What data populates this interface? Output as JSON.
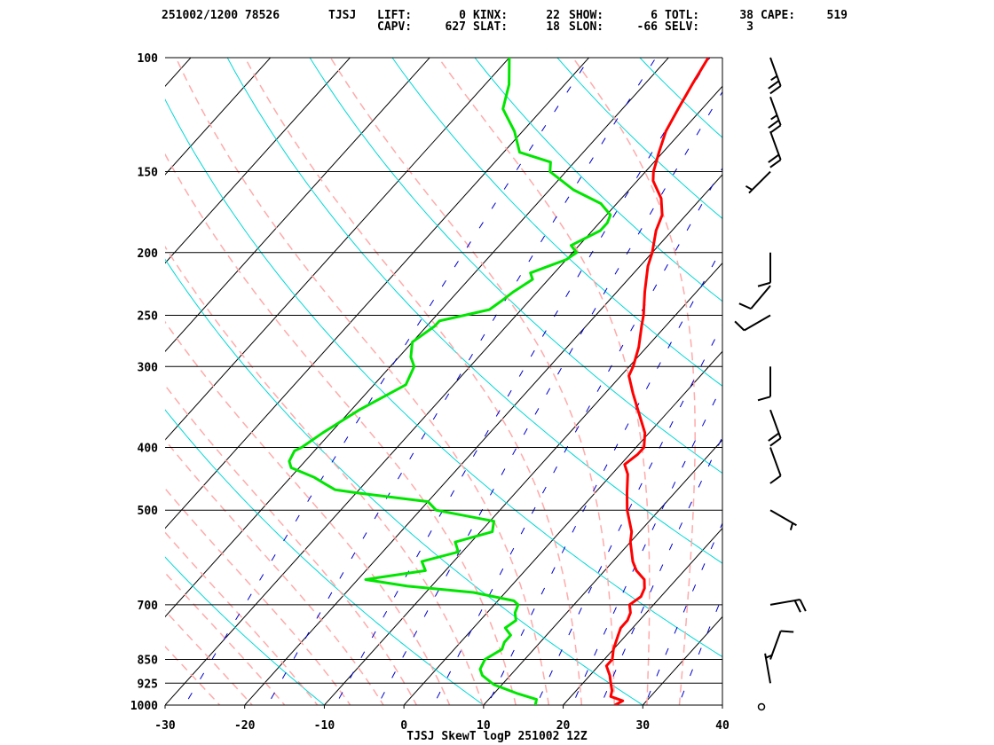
{
  "header": {
    "line1": [
      {
        "key": "id",
        "text": "251002/1200 78526"
      },
      {
        "key": "stn",
        "text": "TJSJ"
      },
      {
        "key": "lift",
        "label": "LIFT:",
        "value": "0"
      },
      {
        "key": "kinx",
        "label": "KINX:",
        "value": "22"
      },
      {
        "key": "show",
        "label": "SHOW:",
        "value": "6"
      },
      {
        "key": "totl",
        "label": "TOTL:",
        "value": "38"
      },
      {
        "key": "cape",
        "label": "CAPE:",
        "value": "519"
      }
    ],
    "line2": [
      {
        "key": "capv",
        "label": "CAPV:",
        "value": "627"
      },
      {
        "key": "slat",
        "label": "SLAT:",
        "value": "18"
      },
      {
        "key": "slon",
        "label": "SLON:",
        "value": "-66"
      },
      {
        "key": "selv",
        "label": "SELV:",
        "value": "3"
      }
    ]
  },
  "colors": {
    "temperature": "#ff0000",
    "dewpoint": "#00e600",
    "isotherm": "#000000",
    "dry_adiabat": "#00d8d8",
    "moist_adiabat": "#ffaaaa",
    "mixing_ratio": "#0000cc",
    "isobar": "#000000",
    "wind_barb": "#000000"
  },
  "chart_data": {
    "type": "line",
    "title": "TJSJ SkewT logP 251002 12Z",
    "x_axis": {
      "ticks": [
        -30,
        -20,
        -10,
        0,
        10,
        20,
        30,
        40
      ],
      "range": [
        -30,
        40
      ]
    },
    "y_axis": {
      "scale": "log",
      "ticks": [
        100,
        150,
        200,
        250,
        300,
        400,
        500,
        700,
        850,
        925,
        1000
      ],
      "range": [
        1000,
        100
      ]
    },
    "series": [
      {
        "key": "temperature",
        "points": [
          [
            1000,
            26.5
          ],
          [
            985,
            27
          ],
          [
            970,
            25
          ],
          [
            950,
            24.5
          ],
          [
            925,
            23.5
          ],
          [
            900,
            22.5
          ],
          [
            870,
            21
          ],
          [
            850,
            21
          ],
          [
            820,
            20
          ],
          [
            800,
            19.5
          ],
          [
            780,
            19
          ],
          [
            760,
            18.5
          ],
          [
            740,
            18.5
          ],
          [
            720,
            18
          ],
          [
            700,
            17
          ],
          [
            680,
            17.5
          ],
          [
            660,
            17
          ],
          [
            640,
            16
          ],
          [
            620,
            14
          ],
          [
            600,
            12.5
          ],
          [
            560,
            10
          ],
          [
            540,
            9
          ],
          [
            500,
            6
          ],
          [
            470,
            4
          ],
          [
            440,
            2
          ],
          [
            425,
            0.5
          ],
          [
            410,
            1
          ],
          [
            400,
            1
          ],
          [
            380,
            -0.5
          ],
          [
            350,
            -4
          ],
          [
            330,
            -6.5
          ],
          [
            310,
            -9
          ],
          [
            300,
            -9.5
          ],
          [
            280,
            -11
          ],
          [
            260,
            -13
          ],
          [
            250,
            -14
          ],
          [
            230,
            -16.5
          ],
          [
            210,
            -19
          ],
          [
            200,
            -20
          ],
          [
            185,
            -22
          ],
          [
            175,
            -23
          ],
          [
            165,
            -25
          ],
          [
            155,
            -28
          ],
          [
            150,
            -29
          ],
          [
            140,
            -30.5
          ],
          [
            130,
            -32
          ],
          [
            120,
            -33
          ],
          [
            110,
            -34
          ],
          [
            100,
            -35
          ]
        ]
      },
      {
        "key": "dewpoint",
        "points": [
          [
            1000,
            16.5
          ],
          [
            980,
            16
          ],
          [
            960,
            13
          ],
          [
            930,
            9
          ],
          [
            900,
            6.5
          ],
          [
            880,
            5.5
          ],
          [
            850,
            5
          ],
          [
            820,
            6
          ],
          [
            800,
            5.5
          ],
          [
            780,
            5.5
          ],
          [
            760,
            4
          ],
          [
            740,
            4.5
          ],
          [
            720,
            3.5
          ],
          [
            700,
            3
          ],
          [
            690,
            2
          ],
          [
            670,
            -4
          ],
          [
            655,
            -13
          ],
          [
            640,
            -19
          ],
          [
            635,
            -17.5
          ],
          [
            620,
            -12.5
          ],
          [
            600,
            -14
          ],
          [
            580,
            -10.5
          ],
          [
            560,
            -12
          ],
          [
            540,
            -8.5
          ],
          [
            520,
            -9.5
          ],
          [
            500,
            -18
          ],
          [
            485,
            -20
          ],
          [
            470,
            -30
          ],
          [
            465,
            -33
          ],
          [
            455,
            -35
          ],
          [
            445,
            -37
          ],
          [
            430,
            -41
          ],
          [
            420,
            -42
          ],
          [
            405,
            -42.5
          ],
          [
            400,
            -42
          ],
          [
            380,
            -41
          ],
          [
            350,
            -39
          ],
          [
            320,
            -36
          ],
          [
            300,
            -37
          ],
          [
            290,
            -38.5
          ],
          [
            275,
            -40
          ],
          [
            260,
            -39
          ],
          [
            255,
            -39
          ],
          [
            245,
            -34
          ],
          [
            238,
            -33.5
          ],
          [
            230,
            -33
          ],
          [
            220,
            -32
          ],
          [
            215,
            -33
          ],
          [
            210,
            -31.5
          ],
          [
            205,
            -30
          ],
          [
            200,
            -29.5
          ],
          [
            195,
            -31
          ],
          [
            185,
            -29
          ],
          [
            180,
            -29
          ],
          [
            175,
            -29.5
          ],
          [
            168,
            -32
          ],
          [
            160,
            -37
          ],
          [
            150,
            -42
          ],
          [
            145,
            -43
          ],
          [
            140,
            -48
          ],
          [
            130,
            -51
          ],
          [
            120,
            -55
          ],
          [
            110,
            -57
          ],
          [
            100,
            -60
          ]
        ]
      }
    ],
    "winds": [
      {
        "p": 1000,
        "dir": null,
        "spd": 0
      },
      {
        "p": 925,
        "dir": 350,
        "spd": 5
      },
      {
        "p": 850,
        "dir": 20,
        "spd": 10
      },
      {
        "p": 700,
        "dir": 80,
        "spd": 20
      },
      {
        "p": 500,
        "dir": 120,
        "spd": 5
      },
      {
        "p": 400,
        "dir": 160,
        "spd": 10
      },
      {
        "p": 350,
        "dir": 160,
        "spd": 20
      },
      {
        "p": 300,
        "dir": 180,
        "spd": 10
      },
      {
        "p": 250,
        "dir": 240,
        "spd": 10
      },
      {
        "p": 225,
        "dir": 220,
        "spd": 10
      },
      {
        "p": 200,
        "dir": 180,
        "spd": 10
      },
      {
        "p": 150,
        "dir": 225,
        "spd": 5
      },
      {
        "p": 130,
        "dir": 160,
        "spd": 20
      },
      {
        "p": 115,
        "dir": 160,
        "spd": 25
      },
      {
        "p": 100,
        "dir": 160,
        "spd": 25
      }
    ]
  }
}
